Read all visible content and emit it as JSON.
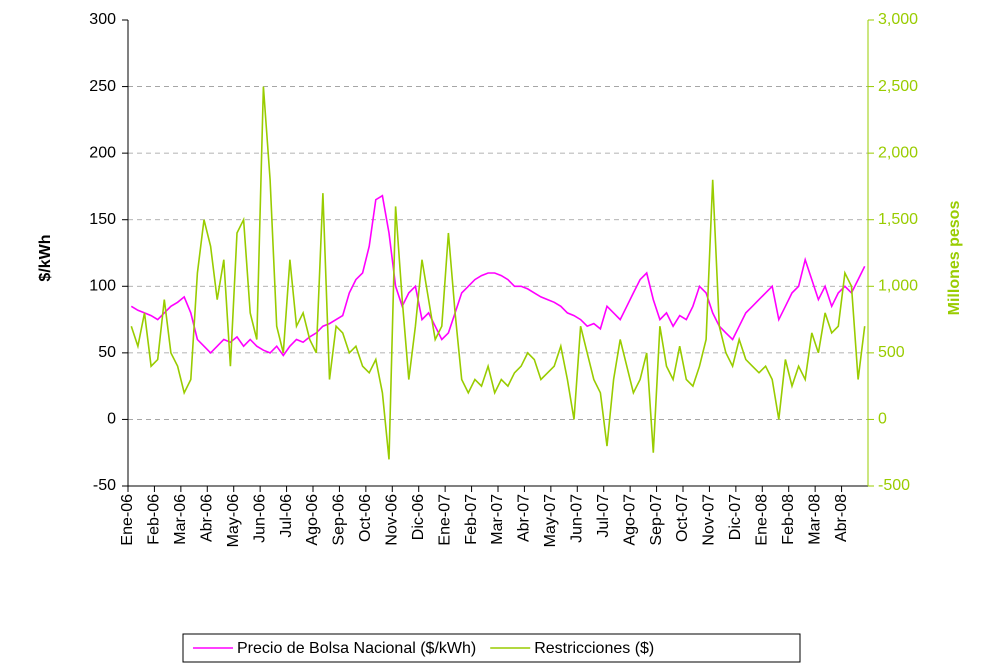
{
  "chart_data": {
    "type": "line",
    "categories": [
      "Ene-06",
      null,
      null,
      null,
      "Feb-06",
      null,
      null,
      null,
      "Mar-06",
      null,
      null,
      null,
      "Abr-06",
      null,
      null,
      null,
      "May-06",
      null,
      null,
      null,
      "Jun-06",
      null,
      null,
      null,
      "Jul-06",
      null,
      null,
      null,
      "Ago-06",
      null,
      null,
      null,
      "Sep-06",
      null,
      null,
      null,
      "Oct-06",
      null,
      null,
      null,
      "Nov-06",
      null,
      null,
      null,
      "Dic-06",
      null,
      null,
      null,
      "Ene-07",
      null,
      null,
      null,
      "Feb-07",
      null,
      null,
      null,
      "Mar-07",
      null,
      null,
      null,
      "Abr-07",
      null,
      null,
      null,
      "May-07",
      null,
      null,
      null,
      "Jun-07",
      null,
      null,
      null,
      "Jul-07",
      null,
      null,
      null,
      "Ago-07",
      null,
      null,
      null,
      "Sep-07",
      null,
      null,
      null,
      "Oct-07",
      null,
      null,
      null,
      "Nov-07",
      null,
      null,
      null,
      "Dic-07",
      null,
      null,
      null,
      "Ene-08",
      null,
      null,
      null,
      "Feb-08",
      null,
      null,
      null,
      "Mar-08",
      null,
      null,
      null,
      "Abr-08",
      null,
      null,
      null
    ],
    "series": [
      {
        "name": "Precio de Bolsa Nacional ($/kWh)",
        "color": "#ff00ff",
        "values": [
          85,
          82,
          80,
          78,
          75,
          80,
          85,
          88,
          92,
          80,
          60,
          55,
          50,
          55,
          60,
          58,
          62,
          55,
          60,
          55,
          52,
          50,
          55,
          48,
          55,
          60,
          58,
          62,
          65,
          70,
          72,
          75,
          78,
          95,
          105,
          110,
          130,
          165,
          168,
          140,
          100,
          85,
          95,
          100,
          75,
          80,
          70,
          60,
          65,
          80,
          95,
          100,
          105,
          108,
          110,
          110,
          108,
          105,
          100,
          100,
          98,
          95,
          92,
          90,
          88,
          85,
          80,
          78,
          75,
          70,
          72,
          68,
          85,
          80,
          75,
          85,
          95,
          105,
          110,
          90,
          75,
          80,
          70,
          78,
          75,
          85,
          100,
          95,
          80,
          70,
          65,
          60,
          70,
          80,
          85,
          90,
          95,
          100,
          75,
          85,
          95,
          100,
          120,
          105,
          90,
          100,
          85,
          95,
          100,
          95,
          105,
          115
        ]
      },
      {
        "name": "Restricciones ($)",
        "color": "#99cc00",
        "axis": "y2",
        "values": [
          700,
          550,
          800,
          400,
          450,
          900,
          500,
          400,
          200,
          300,
          1100,
          1500,
          1300,
          900,
          1200,
          400,
          1400,
          1500,
          800,
          600,
          2500,
          1800,
          700,
          500,
          1200,
          700,
          800,
          600,
          500,
          1700,
          300,
          700,
          650,
          500,
          550,
          400,
          350,
          450,
          200,
          -300,
          1600,
          900,
          300,
          700,
          1200,
          900,
          600,
          700,
          1400,
          800,
          300,
          200,
          300,
          250,
          400,
          200,
          300,
          250,
          350,
          400,
          500,
          450,
          300,
          350,
          400,
          550,
          300,
          0,
          700,
          500,
          300,
          200,
          -200,
          300,
          600,
          400,
          200,
          300,
          500,
          -250,
          700,
          400,
          300,
          550,
          300,
          250,
          400,
          600,
          1800,
          700,
          500,
          400,
          600,
          450,
          400,
          350,
          400,
          300,
          0,
          450,
          250,
          400,
          300,
          650,
          500,
          800,
          650,
          700,
          1100,
          1000,
          300,
          700
        ]
      }
    ],
    "y_label": "$/kWh",
    "y2_label": "Millones pesos",
    "ylim": [
      -50,
      300
    ],
    "yticks": [
      -50,
      0,
      50,
      100,
      150,
      200,
      250,
      300
    ],
    "y2lim": [
      -500,
      3000
    ],
    "y2ticks": [
      -500,
      0,
      500,
      {
        "value": 1000,
        "label": "1,000"
      },
      {
        "value": 1500,
        "label": "1,500"
      },
      {
        "value": 2000,
        "label": "2,000"
      },
      {
        "value": 2500,
        "label": "2,500"
      },
      {
        "value": 3000,
        "label": "3,000"
      }
    ],
    "grid": true,
    "legend": "bottom"
  }
}
